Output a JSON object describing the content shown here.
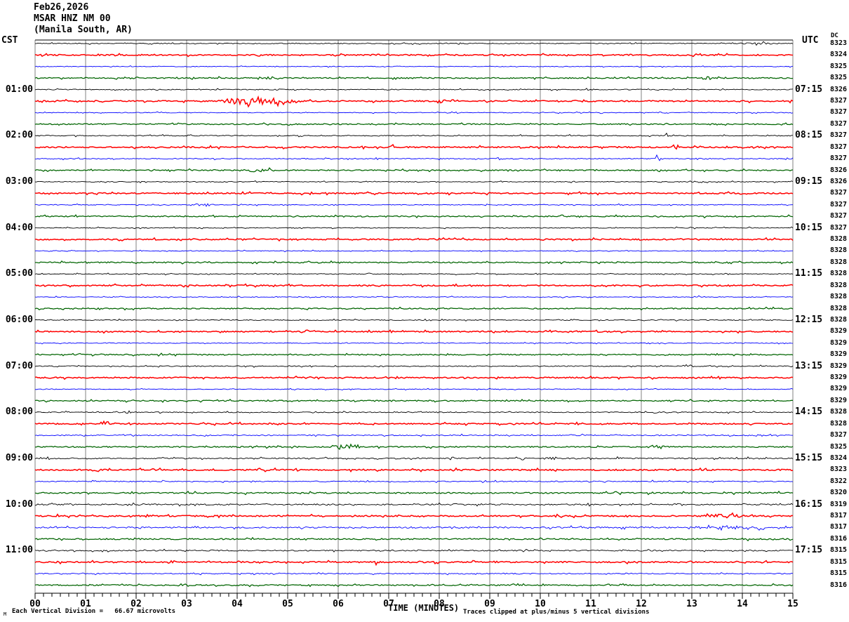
{
  "header": {
    "date": "Feb26,2026",
    "station": "MSAR HNZ NM 00",
    "location": "(Manila South, AR)"
  },
  "axes": {
    "left_tz": "CST",
    "right_tz": "UTC",
    "dc_label": "DC",
    "x_title": "TIME (MINUTES)",
    "x_ticks": [
      "00",
      "01",
      "02",
      "03",
      "04",
      "05",
      "06",
      "07",
      "08",
      "09",
      "10",
      "11",
      "12",
      "13",
      "14",
      "15"
    ]
  },
  "footer": {
    "scale_text": "Each Vertical Division =   66.67 microvolts",
    "clip_note": "Traces clipped at plus/minus 5 vertical divisions",
    "watermark": "M"
  },
  "colors": {
    "black": "#000000",
    "red": "#ff0000",
    "blue": "#0000ff",
    "green": "#006400",
    "grid": "#808080",
    "axis": "#000000",
    "background": "#ffffff"
  },
  "chart_data": {
    "type": "line",
    "subtype": "helicorder-seismogram",
    "minutes_per_line": 15,
    "x_range_minutes": [
      0,
      15
    ],
    "clip_divisions": 5,
    "division_scale": "66.67 microvolts",
    "left_time_labels": [
      {
        "row_index": 4,
        "label": "01:00"
      },
      {
        "row_index": 8,
        "label": "02:00"
      },
      {
        "row_index": 12,
        "label": "03:00"
      },
      {
        "row_index": 16,
        "label": "04:00"
      },
      {
        "row_index": 20,
        "label": "05:00"
      },
      {
        "row_index": 24,
        "label": "06:00"
      },
      {
        "row_index": 28,
        "label": "07:00"
      },
      {
        "row_index": 32,
        "label": "08:00"
      },
      {
        "row_index": 36,
        "label": "09:00"
      },
      {
        "row_index": 40,
        "label": "10:00"
      },
      {
        "row_index": 44,
        "label": "11:00"
      }
    ],
    "right_time_labels": [
      {
        "row_index": 4,
        "label": "07:15"
      },
      {
        "row_index": 8,
        "label": "08:15"
      },
      {
        "row_index": 12,
        "label": "09:15"
      },
      {
        "row_index": 16,
        "label": "10:15"
      },
      {
        "row_index": 20,
        "label": "11:15"
      },
      {
        "row_index": 24,
        "label": "12:15"
      },
      {
        "row_index": 28,
        "label": "13:15"
      },
      {
        "row_index": 32,
        "label": "14:15"
      },
      {
        "row_index": 36,
        "label": "15:15"
      },
      {
        "row_index": 40,
        "label": "16:15"
      },
      {
        "row_index": 44,
        "label": "17:15"
      }
    ],
    "rows": [
      {
        "c": "black",
        "dc": 8323,
        "n": 0.6,
        "ev": [
          {
            "m": 13.9,
            "d": 1.0,
            "a": 1.3
          }
        ]
      },
      {
        "c": "red",
        "dc": 8324,
        "n": 0.85,
        "ev": []
      },
      {
        "c": "blue",
        "dc": 8325,
        "n": 0.5,
        "ev": []
      },
      {
        "c": "green",
        "dc": 8325,
        "n": 0.8,
        "ev": [
          {
            "m": 1.8,
            "d": 0.3,
            "a": 1.8
          },
          {
            "m": 2.7,
            "d": 0.35,
            "a": 1.8
          },
          {
            "m": 4.35,
            "d": 0.45,
            "a": 1.8
          },
          {
            "m": 13.15,
            "d": 0.3,
            "a": 2.2
          }
        ]
      },
      {
        "c": "black",
        "dc": 8326,
        "n": 0.6,
        "ev": [
          {
            "m": 10.7,
            "d": 0.4,
            "a": 1.2
          }
        ]
      },
      {
        "c": "red",
        "dc": 8327,
        "n": 0.9,
        "ev": [
          {
            "m": 3.55,
            "d": 1.75,
            "a": 5.5
          },
          {
            "m": 7.95,
            "d": 0.18,
            "a": 4.5
          }
        ]
      },
      {
        "c": "blue",
        "dc": 8327,
        "n": 0.5,
        "ev": []
      },
      {
        "c": "green",
        "dc": 8327,
        "n": 0.8,
        "ev": []
      },
      {
        "c": "black",
        "dc": 8327,
        "n": 0.65,
        "ev": [
          {
            "m": 12.35,
            "d": 0.4,
            "a": 1.8
          }
        ]
      },
      {
        "c": "red",
        "dc": 8327,
        "n": 0.9,
        "ev": [
          {
            "m": 7.0,
            "d": 0.12,
            "a": 4.0
          },
          {
            "m": 12.55,
            "d": 0.22,
            "a": 5.0
          },
          {
            "m": 13.55,
            "d": 0.25,
            "a": 2.2
          },
          {
            "m": 14.15,
            "d": 0.25,
            "a": 1.8
          }
        ]
      },
      {
        "c": "blue",
        "dc": 8327,
        "n": 0.6,
        "ev": [
          {
            "m": 9.1,
            "d": 0.18,
            "a": 3.5
          },
          {
            "m": 12.25,
            "d": 0.18,
            "a": 3.0
          },
          {
            "m": 12.9,
            "d": 0.6,
            "a": 1.2
          }
        ]
      },
      {
        "c": "green",
        "dc": 8326,
        "n": 0.8,
        "ev": [
          {
            "m": 3.95,
            "d": 0.95,
            "a": 1.8
          },
          {
            "m": 4.6,
            "d": 0.18,
            "a": 2.8
          }
        ]
      },
      {
        "c": "black",
        "dc": 8326,
        "n": 0.55,
        "ev": []
      },
      {
        "c": "red",
        "dc": 8327,
        "n": 0.85,
        "ev": []
      },
      {
        "c": "blue",
        "dc": 8327,
        "n": 0.55,
        "ev": [
          {
            "m": 3.0,
            "d": 0.65,
            "a": 2.6
          }
        ]
      },
      {
        "c": "green",
        "dc": 8327,
        "n": 0.8,
        "ev": []
      },
      {
        "c": "black",
        "dc": 8327,
        "n": 0.55,
        "ev": []
      },
      {
        "c": "red",
        "dc": 8328,
        "n": 0.85,
        "ev": []
      },
      {
        "c": "blue",
        "dc": 8328,
        "n": 0.5,
        "ev": []
      },
      {
        "c": "green",
        "dc": 8328,
        "n": 0.8,
        "ev": []
      },
      {
        "c": "black",
        "dc": 8328,
        "n": 0.55,
        "ev": []
      },
      {
        "c": "red",
        "dc": 8328,
        "n": 0.85,
        "ev": []
      },
      {
        "c": "blue",
        "dc": 8328,
        "n": 0.5,
        "ev": [
          {
            "m": 12.9,
            "d": 0.4,
            "a": 1.0
          }
        ]
      },
      {
        "c": "green",
        "dc": 8328,
        "n": 0.8,
        "ev": []
      },
      {
        "c": "black",
        "dc": 8328,
        "n": 0.55,
        "ev": []
      },
      {
        "c": "red",
        "dc": 8329,
        "n": 0.85,
        "ev": []
      },
      {
        "c": "blue",
        "dc": 8329,
        "n": 0.5,
        "ev": []
      },
      {
        "c": "green",
        "dc": 8329,
        "n": 0.8,
        "ev": []
      },
      {
        "c": "black",
        "dc": 8329,
        "n": 0.65,
        "ev": [
          {
            "m": 3.0,
            "d": 0.3,
            "a": 1.1
          },
          {
            "m": 12.8,
            "d": 0.3,
            "a": 1.1
          }
        ]
      },
      {
        "c": "red",
        "dc": 8329,
        "n": 0.85,
        "ev": []
      },
      {
        "c": "blue",
        "dc": 8329,
        "n": 0.5,
        "ev": []
      },
      {
        "c": "green",
        "dc": 8329,
        "n": 0.8,
        "ev": []
      },
      {
        "c": "black",
        "dc": 8328,
        "n": 0.65,
        "ev": [
          {
            "m": 1.75,
            "d": 0.15,
            "a": 2.2
          },
          {
            "m": 12.0,
            "d": 0.6,
            "a": 1.0
          }
        ]
      },
      {
        "c": "red",
        "dc": 8328,
        "n": 0.85,
        "ev": [
          {
            "m": 1.15,
            "d": 0.45,
            "a": 1.6
          }
        ]
      },
      {
        "c": "blue",
        "dc": 8327,
        "n": 0.7,
        "ev": [
          {
            "m": 14.0,
            "d": 0.5,
            "a": 1.3
          }
        ]
      },
      {
        "c": "green",
        "dc": 8325,
        "n": 0.85,
        "ev": [
          {
            "m": 5.75,
            "d": 0.75,
            "a": 3.2
          },
          {
            "m": 12.3,
            "d": 0.2,
            "a": 1.8
          }
        ]
      },
      {
        "c": "black",
        "dc": 8324,
        "n": 0.8,
        "ev": [
          {
            "m": 9.6,
            "d": 0.12,
            "a": 3.0
          },
          {
            "m": 9.95,
            "d": 0.55,
            "a": 2.2
          },
          {
            "m": 11.5,
            "d": 0.3,
            "a": 1.3
          },
          {
            "m": 14.0,
            "d": 0.35,
            "a": 1.6
          }
        ]
      },
      {
        "c": "red",
        "dc": 8323,
        "n": 0.95,
        "ev": [
          {
            "m": 1.0,
            "d": 0.35,
            "a": 1.4
          }
        ]
      },
      {
        "c": "blue",
        "dc": 8322,
        "n": 0.7,
        "ev": []
      },
      {
        "c": "green",
        "dc": 8320,
        "n": 0.9,
        "ev": [
          {
            "m": 11.35,
            "d": 0.3,
            "a": 1.4
          }
        ]
      },
      {
        "c": "black",
        "dc": 8319,
        "n": 0.9,
        "ev": [
          {
            "m": 8.2,
            "d": 0.5,
            "a": 1.1
          },
          {
            "m": 12.6,
            "d": 0.5,
            "a": 1.2
          }
        ]
      },
      {
        "c": "red",
        "dc": 8317,
        "n": 0.9,
        "ev": [
          {
            "m": 6.25,
            "d": 0.18,
            "a": 2.2
          },
          {
            "m": 13.2,
            "d": 0.9,
            "a": 3.2
          }
        ]
      },
      {
        "c": "blue",
        "dc": 8317,
        "n": 1.0,
        "ev": [
          {
            "m": 12.95,
            "d": 1.3,
            "a": 2.2
          },
          {
            "m": 14.25,
            "d": 0.25,
            "a": 2.6
          }
        ]
      },
      {
        "c": "green",
        "dc": 8316,
        "n": 0.9,
        "ev": []
      },
      {
        "c": "black",
        "dc": 8315,
        "n": 0.8,
        "ev": []
      },
      {
        "c": "red",
        "dc": 8315,
        "n": 0.9,
        "ev": [
          {
            "m": 2.65,
            "d": 0.18,
            "a": 1.8
          },
          {
            "m": 6.65,
            "d": 0.18,
            "a": 1.8
          }
        ]
      },
      {
        "c": "blue",
        "dc": 8315,
        "n": 0.7,
        "ev": []
      },
      {
        "c": "green",
        "dc": 8316,
        "n": 0.8,
        "ev": []
      }
    ]
  }
}
